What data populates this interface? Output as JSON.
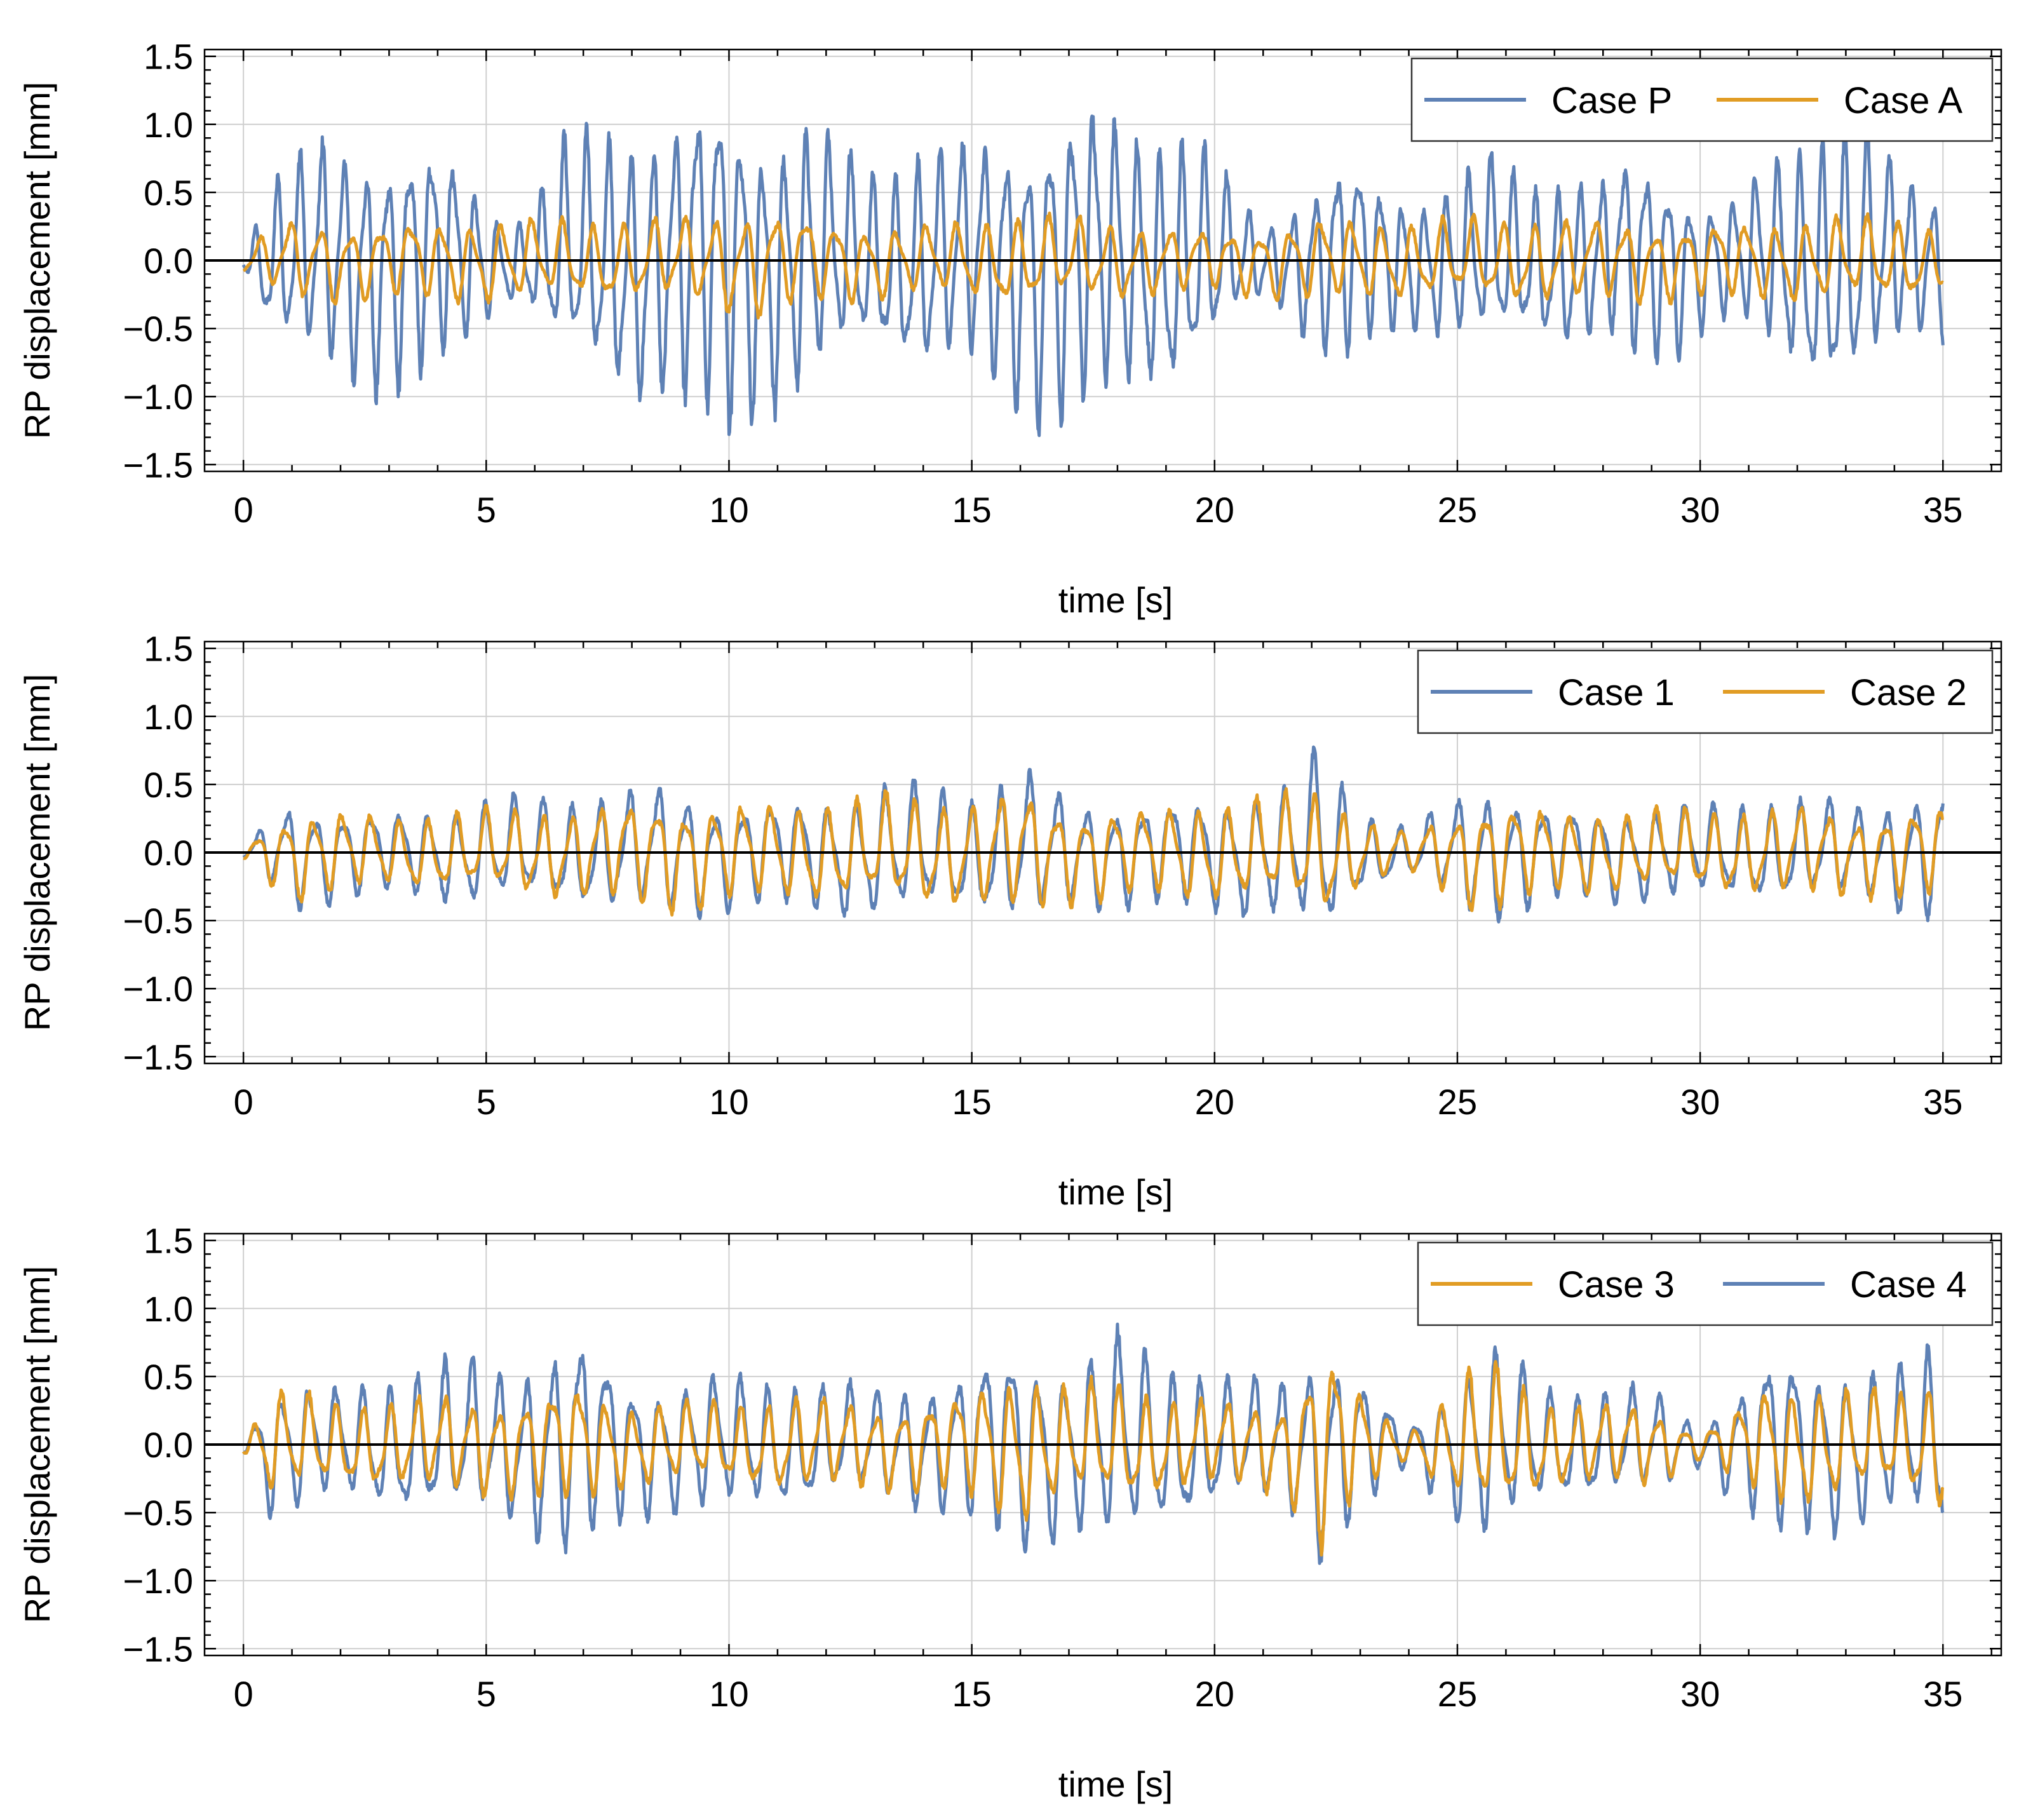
{
  "figure": {
    "y_ticks": [
      "1.5",
      "1.0",
      "0.5",
      "0.0",
      "−0.5",
      "−1.0",
      "−1.5"
    ],
    "x_ticks": [
      "0",
      "5",
      "10",
      "15",
      "20",
      "25",
      "30",
      "35"
    ]
  },
  "colors": {
    "blue": "#5e81b5",
    "orange": "#e19c24",
    "grid": "#cfcfcf",
    "axis": "#000000"
  },
  "chart_data": [
    {
      "type": "line",
      "title": "",
      "xlabel": "time [s]",
      "ylabel": "RP displacement [mm]",
      "xlim": [
        -0.8,
        36.2
      ],
      "ylim": [
        -1.55,
        1.55
      ],
      "x_ticks": [
        0,
        5,
        10,
        15,
        20,
        25,
        30,
        35
      ],
      "y_ticks": [
        1.5,
        1.0,
        0.5,
        0.0,
        -0.5,
        -1.0,
        -1.5
      ],
      "grid": true,
      "legend_position": "top-right",
      "series": [
        {
          "name": "Case P",
          "color": "blue",
          "amplitude_envelope": [
            [
              0,
              0.05
            ],
            [
              0.6,
              0.6
            ],
            [
              1.5,
              0.85
            ],
            [
              2.5,
              0.9
            ],
            [
              3.5,
              0.9
            ],
            [
              4.2,
              0.8
            ],
            [
              4.8,
              0.55
            ],
            [
              5.3,
              0.3
            ],
            [
              5.9,
              0.35
            ],
            [
              6.5,
              0.8
            ],
            [
              7.5,
              0.95
            ],
            [
              8.5,
              1.0
            ],
            [
              9.2,
              1.15
            ],
            [
              10,
              1.3
            ],
            [
              10.6,
              1.05
            ],
            [
              11.6,
              1.0
            ],
            [
              12.5,
              0.75
            ],
            [
              13.1,
              0.65
            ],
            [
              14,
              0.85
            ],
            [
              15,
              0.85
            ],
            [
              16,
              1.05
            ],
            [
              16.7,
              1.2
            ],
            [
              17.5,
              1.15
            ],
            [
              18.5,
              0.95
            ],
            [
              19.3,
              0.95
            ],
            [
              20,
              0.75
            ],
            [
              20.5,
              0.4
            ],
            [
              21.2,
              0.28
            ],
            [
              22,
              0.6
            ],
            [
              22.7,
              0.8
            ],
            [
              23.5,
              0.55
            ],
            [
              24.2,
              0.5
            ],
            [
              25,
              0.6
            ],
            [
              25.8,
              0.75
            ],
            [
              26.5,
              0.55
            ],
            [
              27.3,
              0.65
            ],
            [
              28,
              0.6
            ],
            [
              28.6,
              0.8
            ],
            [
              29.4,
              0.7
            ],
            [
              30,
              0.5
            ],
            [
              30.7,
              0.45
            ],
            [
              31.5,
              0.75
            ],
            [
              32.5,
              1.0
            ],
            [
              33.3,
              1.0
            ],
            [
              34,
              0.7
            ],
            [
              34.6,
              0.55
            ],
            [
              35,
              0.55
            ]
          ],
          "frequency_hz": 2.2
        },
        {
          "name": "Case A",
          "color": "orange",
          "amplitude_envelope": [
            [
              0,
              0.1
            ],
            [
              1,
              0.3
            ],
            [
              3,
              0.28
            ],
            [
              5,
              0.3
            ],
            [
              7,
              0.28
            ],
            [
              9,
              0.3
            ],
            [
              10.5,
              0.4
            ],
            [
              12,
              0.3
            ],
            [
              14,
              0.25
            ],
            [
              16,
              0.32
            ],
            [
              18,
              0.27
            ],
            [
              20,
              0.22
            ],
            [
              22,
              0.3
            ],
            [
              24,
              0.28
            ],
            [
              26,
              0.3
            ],
            [
              28,
              0.3
            ],
            [
              30,
              0.27
            ],
            [
              32,
              0.3
            ],
            [
              34,
              0.3
            ],
            [
              35,
              0.22
            ]
          ],
          "frequency_hz": 1.6
        }
      ]
    },
    {
      "type": "line",
      "title": "",
      "xlabel": "time [s]",
      "ylabel": "RP displacement [mm]",
      "xlim": [
        -0.8,
        36.2
      ],
      "ylim": [
        -1.55,
        1.55
      ],
      "x_ticks": [
        0,
        5,
        10,
        15,
        20,
        25,
        30,
        35
      ],
      "y_ticks": [
        1.5,
        1.0,
        0.5,
        0.0,
        -0.5,
        -1.0,
        -1.5
      ],
      "grid": true,
      "legend_position": "top-right",
      "series": [
        {
          "name": "Case 1",
          "color": "blue",
          "amplitude_envelope": [
            [
              0,
              0.05
            ],
            [
              1,
              0.4
            ],
            [
              3,
              0.3
            ],
            [
              5,
              0.38
            ],
            [
              7,
              0.4
            ],
            [
              8.8,
              0.48
            ],
            [
              10,
              0.4
            ],
            [
              11.5,
              0.4
            ],
            [
              13.5,
              0.5
            ],
            [
              15,
              0.42
            ],
            [
              16.1,
              0.58
            ],
            [
              17,
              0.4
            ],
            [
              18.5,
              0.38
            ],
            [
              20,
              0.42
            ],
            [
              21.5,
              0.5
            ],
            [
              22.2,
              0.75
            ],
            [
              23,
              0.3
            ],
            [
              24,
              0.18
            ],
            [
              25.5,
              0.5
            ],
            [
              27,
              0.35
            ],
            [
              29,
              0.35
            ],
            [
              30.5,
              0.35
            ],
            [
              32,
              0.38
            ],
            [
              33.5,
              0.35
            ],
            [
              35,
              0.52
            ]
          ],
          "frequency_hz": 1.7
        },
        {
          "name": "Case 2",
          "color": "orange",
          "amplitude_envelope": [
            [
              0,
              0.05
            ],
            [
              1,
              0.35
            ],
            [
              3,
              0.25
            ],
            [
              5,
              0.3
            ],
            [
              7,
              0.33
            ],
            [
              8.8,
              0.42
            ],
            [
              10,
              0.35
            ],
            [
              11.5,
              0.35
            ],
            [
              13.5,
              0.4
            ],
            [
              15,
              0.38
            ],
            [
              16.1,
              0.45
            ],
            [
              17,
              0.35
            ],
            [
              18.5,
              0.32
            ],
            [
              20,
              0.36
            ],
            [
              21.5,
              0.4
            ],
            [
              22.2,
              0.45
            ],
            [
              23,
              0.25
            ],
            [
              24,
              0.15
            ],
            [
              25.5,
              0.42
            ],
            [
              27,
              0.3
            ],
            [
              29,
              0.3
            ],
            [
              30.5,
              0.3
            ],
            [
              32,
              0.33
            ],
            [
              33.5,
              0.3
            ],
            [
              35,
              0.35
            ]
          ],
          "frequency_hz": 1.7
        }
      ]
    },
    {
      "type": "line",
      "title": "",
      "xlabel": "time [s]",
      "ylabel": "RP displacement [mm]",
      "xlim": [
        -0.8,
        36.2
      ],
      "ylim": [
        -1.55,
        1.55
      ],
      "x_ticks": [
        0,
        5,
        10,
        15,
        20,
        25,
        30,
        35
      ],
      "y_ticks": [
        1.5,
        1.0,
        0.5,
        0.0,
        -0.5,
        -1.0,
        -1.5
      ],
      "grid": true,
      "legend_position": "top-right",
      "series": [
        {
          "name": "Case 4",
          "color": "blue",
          "amplitude_envelope": [
            [
              0,
              0.05
            ],
            [
              0.6,
              0.5
            ],
            [
              2,
              0.4
            ],
            [
              4.4,
              0.6
            ],
            [
              5.5,
              0.55
            ],
            [
              6.8,
              0.85
            ],
            [
              8,
              0.5
            ],
            [
              10,
              0.5
            ],
            [
              11.5,
              0.45
            ],
            [
              13,
              0.4
            ],
            [
              14.5,
              0.5
            ],
            [
              16,
              0.8
            ],
            [
              17,
              0.6
            ],
            [
              17.9,
              0.82
            ],
            [
              19,
              0.6
            ],
            [
              20.5,
              0.45
            ],
            [
              21.5,
              0.5
            ],
            [
              22.2,
              0.8
            ],
            [
              23.2,
              0.45
            ],
            [
              24,
              0.15
            ],
            [
              25.5,
              0.75
            ],
            [
              27,
              0.4
            ],
            [
              29,
              0.4
            ],
            [
              30,
              0.15
            ],
            [
              31.5,
              0.7
            ],
            [
              33,
              0.6
            ],
            [
              34.2,
              0.55
            ],
            [
              35,
              0.75
            ]
          ],
          "frequency_hz": 1.8
        },
        {
          "name": "Case 3",
          "color": "orange",
          "amplitude_envelope": [
            [
              0,
              0.05
            ],
            [
              0.6,
              0.4
            ],
            [
              2,
              0.3
            ],
            [
              4.4,
              0.35
            ],
            [
              5.5,
              0.35
            ],
            [
              6.8,
              0.45
            ],
            [
              8,
              0.3
            ],
            [
              10,
              0.3
            ],
            [
              11.5,
              0.35
            ],
            [
              13,
              0.3
            ],
            [
              14.5,
              0.35
            ],
            [
              16,
              0.55
            ],
            [
              17,
              0.4
            ],
            [
              17.9,
              0.45
            ],
            [
              19,
              0.35
            ],
            [
              20.5,
              0.3
            ],
            [
              21.5,
              0.35
            ],
            [
              22.2,
              0.8
            ],
            [
              23.2,
              0.3
            ],
            [
              24,
              0.1
            ],
            [
              25.5,
              0.6
            ],
            [
              27,
              0.3
            ],
            [
              29,
              0.3
            ],
            [
              30,
              0.1
            ],
            [
              31.5,
              0.45
            ],
            [
              33,
              0.4
            ],
            [
              34.2,
              0.35
            ],
            [
              35,
              0.5
            ]
          ],
          "frequency_hz": 1.8
        }
      ],
      "legend_order": [
        "Case 3",
        "Case 4"
      ]
    }
  ]
}
